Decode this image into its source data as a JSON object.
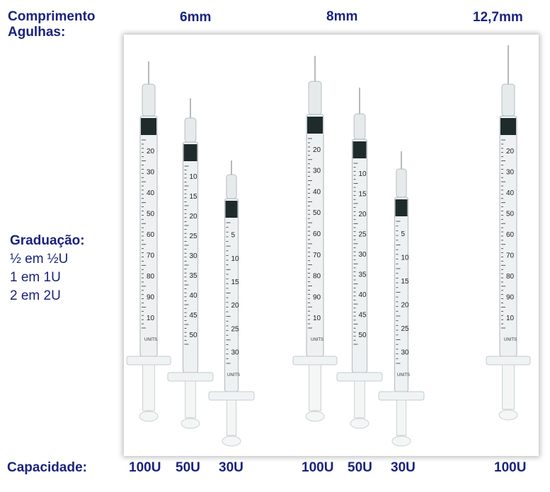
{
  "labels": {
    "needle_length_line1": "Comprimento",
    "needle_length_line2": "Agulhas:",
    "graduation_title": "Graduação:",
    "graduation_lines": [
      "½ em ½U",
      "1 em 1U",
      "2 em 2U"
    ],
    "capacity_title": "Capacidade:"
  },
  "needle_lengths": [
    "6mm",
    "8mm",
    "12,7mm"
  ],
  "capacities": [
    "100U",
    "50U",
    "30U",
    "100U",
    "50U",
    "30U",
    "100U"
  ],
  "syringes": [
    {
      "capacity": "100U",
      "scale": [
        "20",
        "30",
        "40",
        "50",
        "60",
        "70",
        "80",
        "90",
        "10"
      ],
      "unit_mark": "UNITS"
    },
    {
      "capacity": "50U",
      "scale": [
        "10",
        "15",
        "20",
        "25",
        "30",
        "35",
        "40",
        "45",
        "50"
      ],
      "unit_mark": ""
    },
    {
      "capacity": "30U",
      "scale": [
        "5",
        "10",
        "15",
        "20",
        "25",
        "30"
      ],
      "unit_mark": "UNITS"
    },
    {
      "capacity": "100U",
      "scale": [
        "20",
        "30",
        "40",
        "50",
        "60",
        "70",
        "80",
        "90",
        "10"
      ],
      "unit_mark": "UNITS"
    },
    {
      "capacity": "50U",
      "scale": [
        "10",
        "15",
        "20",
        "25",
        "30",
        "35",
        "40",
        "45",
        "50"
      ],
      "unit_mark": ""
    },
    {
      "capacity": "30U",
      "scale": [
        "5",
        "10",
        "15",
        "20",
        "25",
        "30"
      ],
      "unit_mark": "UNITS"
    },
    {
      "capacity": "100U",
      "scale": [
        "20",
        "30",
        "40",
        "50",
        "60",
        "70",
        "80",
        "90",
        "10"
      ],
      "unit_mark": "UNITS"
    }
  ],
  "colors": {
    "text": "#1a237e",
    "barrel": "#eef1f2",
    "seal": "#1f2a2a",
    "plunger": "#f4f6f6"
  }
}
